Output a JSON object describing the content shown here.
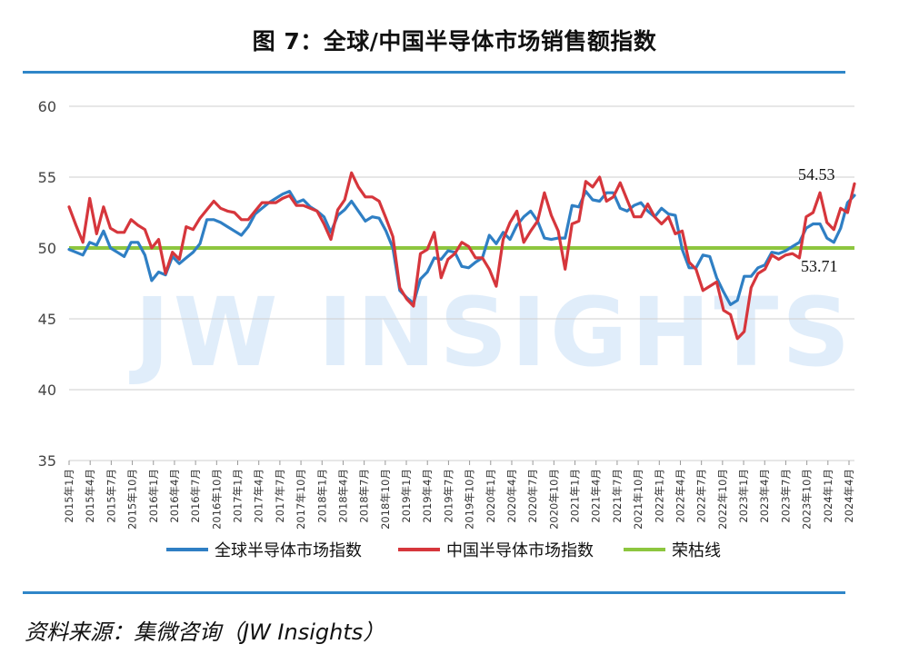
{
  "title": "图 7：全球/中国半导体市场销售额指数",
  "source": "资料来源：集微咨询（JW Insights）",
  "watermark": "JW INSIGHTS",
  "chart_data": {
    "type": "line",
    "ylim": [
      35,
      60
    ],
    "yticks": [
      35,
      40,
      45,
      50,
      55,
      60
    ],
    "grid": true,
    "legend_position": "bottom",
    "x_labels": [
      "2015年1月",
      "2015年4月",
      "2015年7月",
      "2015年10月",
      "2016年1月",
      "2016年4月",
      "2016年7月",
      "2016年10月",
      "2017年1月",
      "2017年4月",
      "2017年7月",
      "2017年10月",
      "2018年1月",
      "2018年4月",
      "2018年7月",
      "2018年10月",
      "2019年1月",
      "2019年4月",
      "2019年7月",
      "2019年10月",
      "2020年1月",
      "2020年4月",
      "2020年7月",
      "2020年10月",
      "2021年1月",
      "2021年4月",
      "2021年7月",
      "2021年10月",
      "2022年1月",
      "2022年4月",
      "2022年7月",
      "2022年10月",
      "2023年1月",
      "2023年4月",
      "2023年7月",
      "2023年10月",
      "2024年1月",
      "2024年4月"
    ],
    "series": [
      {
        "name": "全球半导体市场指数",
        "color": "#2f7fc4",
        "values": [
          49.9,
          49.7,
          49.5,
          50.4,
          50.2,
          51.2,
          50.0,
          49.7,
          49.4,
          50.4,
          50.4,
          49.5,
          47.7,
          48.3,
          48.1,
          49.4,
          48.9,
          49.3,
          49.7,
          50.3,
          52.0,
          52.0,
          51.8,
          51.5,
          51.2,
          50.9,
          51.5,
          52.4,
          52.8,
          53.2,
          53.5,
          53.8,
          54.0,
          53.2,
          53.4,
          52.9,
          52.6,
          52.2,
          51.1,
          52.3,
          52.7,
          53.3,
          52.6,
          51.9,
          52.2,
          52.1,
          51.2,
          50.0,
          47.0,
          46.5,
          46.1,
          47.8,
          48.3,
          49.3,
          49.2,
          49.8,
          49.7,
          48.7,
          48.6,
          49.0,
          49.3,
          50.9,
          50.3,
          51.1,
          50.6,
          51.6,
          52.2,
          52.6,
          51.9,
          50.7,
          50.6,
          50.7,
          50.7,
          53.0,
          52.9,
          54.0,
          53.4,
          53.3,
          53.9,
          53.9,
          52.8,
          52.6,
          53.0,
          53.2,
          52.6,
          52.2,
          52.8,
          52.4,
          52.3,
          49.9,
          48.6,
          48.6,
          49.5,
          49.4,
          47.9,
          46.9,
          46.0,
          46.3,
          48.0,
          48.0,
          48.6,
          48.8,
          49.7,
          49.6,
          49.8,
          50.1,
          50.4,
          51.4,
          51.7,
          51.7,
          50.7,
          50.4,
          51.4,
          53.2,
          53.71
        ]
      },
      {
        "name": "中国半导体市场指数",
        "color": "#d6363c",
        "values": [
          52.9,
          51.6,
          50.4,
          53.5,
          51.0,
          52.9,
          51.4,
          51.1,
          51.1,
          52.0,
          51.6,
          51.3,
          50.0,
          50.6,
          48.2,
          49.7,
          49.2,
          51.5,
          51.3,
          52.1,
          52.7,
          53.3,
          52.8,
          52.6,
          52.5,
          52.0,
          52.0,
          52.6,
          53.2,
          53.2,
          53.2,
          53.5,
          53.7,
          53.0,
          53.0,
          52.8,
          52.6,
          51.7,
          50.6,
          52.7,
          53.4,
          55.3,
          54.3,
          53.6,
          53.6,
          53.3,
          52.1,
          50.8,
          47.2,
          46.4,
          45.9,
          49.6,
          49.9,
          51.1,
          47.9,
          49.2,
          49.6,
          50.4,
          50.1,
          49.3,
          49.3,
          48.5,
          47.3,
          50.6,
          51.8,
          52.6,
          50.4,
          51.2,
          51.9,
          53.9,
          52.3,
          51.2,
          48.5,
          51.7,
          51.9,
          54.7,
          54.3,
          55.0,
          53.3,
          53.6,
          54.6,
          53.4,
          52.2,
          52.2,
          53.1,
          52.2,
          51.7,
          52.2,
          51.0,
          51.2,
          49.0,
          48.5,
          47.0,
          47.3,
          47.6,
          45.6,
          45.3,
          43.6,
          44.1,
          47.2,
          48.2,
          48.5,
          49.5,
          49.2,
          49.5,
          49.6,
          49.3,
          52.2,
          52.5,
          53.9,
          51.8,
          51.3,
          52.8,
          52.5,
          54.53
        ]
      },
      {
        "name": "荣枯线",
        "color": "#8dc63f",
        "values": [
          50,
          50
        ]
      }
    ],
    "annotations": [
      {
        "text": "54.53",
        "series": "中国半导体市场指数"
      },
      {
        "text": "53.71",
        "series": "全球半导体市场指数"
      }
    ]
  }
}
